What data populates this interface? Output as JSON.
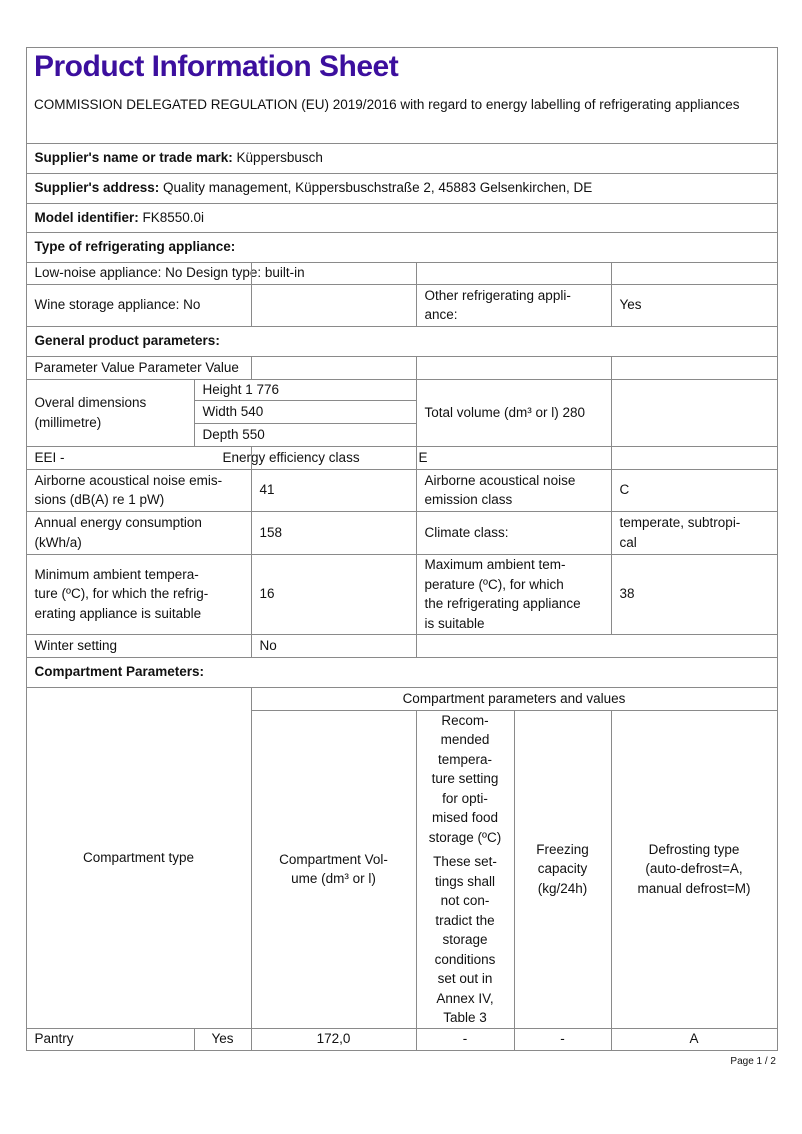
{
  "title": "Product Information Sheet",
  "regulation": "COMMISSION DELEGATED REGULATION (EU) 2019/2016 with regard to energy labelling of refrigerating appliances",
  "supplier_name": {
    "label": "Supplier's name or trade mark:",
    "value": "Küppersbusch"
  },
  "supplier_address": {
    "label": "Supplier's address:",
    "value": "Quality management, Küppersbuschstraße 2, 45883 Gelsenkirchen, DE"
  },
  "model": {
    "label": "Model identifier:",
    "value": "FK8550.0i"
  },
  "type_heading": "Type of refrigerating appliance:",
  "type_rows": {
    "low_noise": "Low-noise appliance: No Design type: built-in",
    "wine": "Wine storage appliance: No",
    "other_label": "Other refrigerating appli-\nance:",
    "other_value": "Yes"
  },
  "general_heading": "General product parameters:",
  "general": {
    "header": "Parameter Value Parameter Value",
    "dimensions_label": "Overal dimensions (millimetre)",
    "height": "Height 1 776",
    "width": "Width 540",
    "depth": "Depth 550",
    "total_volume": "Total volume (dm³ or l) 280",
    "eei": "EEI -",
    "energy_class_label": "Energy efficiency class",
    "energy_class_value": "E",
    "noise_label": "Airborne acoustical noise emis-\nsions (dB(A) re 1 pW)",
    "noise_value": "41",
    "noise_class_label": "Airborne acoustical noise\nemission class",
    "noise_class_value": "C",
    "annual_label": "Annual energy consumption\n(kWh/a)",
    "annual_value": "158",
    "climate_label": "Climate class:",
    "climate_value": "temperate, subtropi-\ncal",
    "min_temp_label": "Minimum ambient tempera-\nture (ºC), for which the refrig-\nerating appliance is suitable",
    "min_temp_value": "16",
    "max_temp_label": "Maximum ambient tem-\nperature (ºC), for which\nthe refrigerating appliance\nis suitable",
    "max_temp_value": "38",
    "winter_label": "Winter setting",
    "winter_value": "No"
  },
  "compartment_heading": "Compartment Parameters:",
  "compartment": {
    "type_header": "Compartment type",
    "group_header": "Compartment parameters and values",
    "volume_header": "Compartment Vol-\nume (dm³ or l)",
    "recommended_header": "Recom-\nmended\ntempera-\nture setting\nfor opti-\nmised food\nstorage (ºC)",
    "recommended_note": "These set-\ntings shall\nnot con-\ntradict the\nstorage\nconditions\nset out in\nAnnex IV,\nTable 3",
    "freezing_header": "Freezing\ncapacity\n(kg/24h)",
    "defrost_header": "Defrosting type\n(auto-defrost=A,\nmanual defrost=M)",
    "rows": [
      {
        "type": "Pantry",
        "present": "Yes",
        "volume": "172,0",
        "temp": "-",
        "freezing": "-",
        "defrost": "A"
      }
    ]
  },
  "page": "Page 1 / 2",
  "colors": {
    "title": "#3c0f9e",
    "border": "#8a8a8a"
  }
}
